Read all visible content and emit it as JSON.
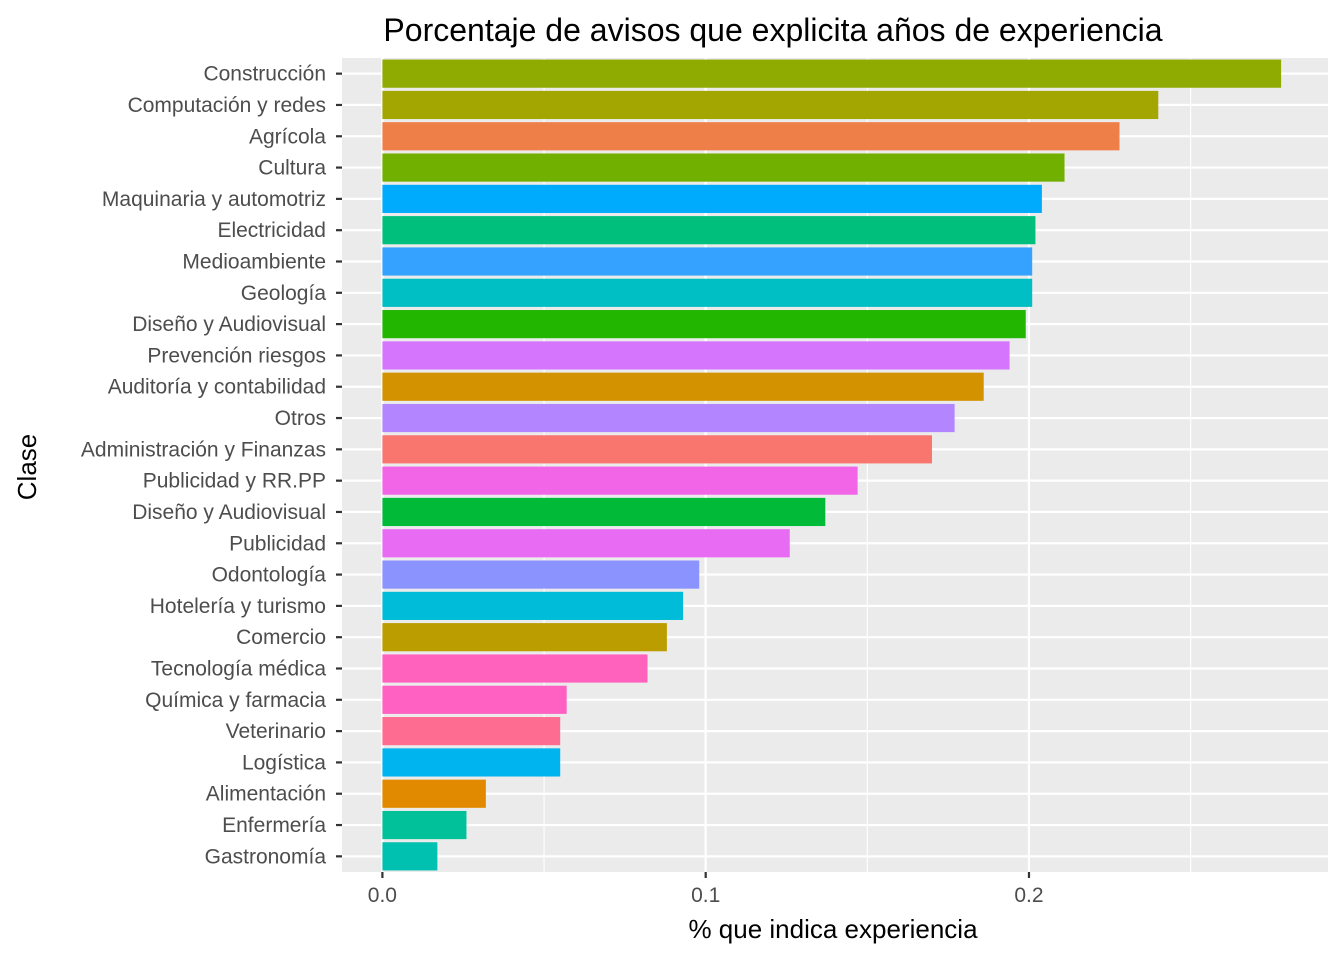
{
  "chart_data": {
    "type": "bar",
    "orientation": "horizontal",
    "title": "Porcentaje de avisos que explicita años de experiencia",
    "xlabel": "% que indica experiencia",
    "ylabel": "Clase",
    "xlim": [
      -0.0125,
      0.2925
    ],
    "x_ticks": [
      {
        "value": 0.0,
        "label": "0.0"
      },
      {
        "value": 0.1,
        "label": "0.1"
      },
      {
        "value": 0.2,
        "label": "0.2"
      }
    ],
    "x_minor": [
      0.05,
      0.15,
      0.25
    ],
    "grid": true,
    "legend": "none",
    "categories": [
      "Construcción",
      "Computación y redes",
      "Agrícola",
      "Cultura",
      "Maquinaria y automotriz",
      "Electricidad",
      "Medioambiente",
      "Geología",
      "Diseño y Audiovisual",
      "Prevención riesgos",
      "Auditoría y contabilidad",
      "Otros",
      "Administración y Finanzas",
      "Publicidad y RR.PP",
      "Diseño y Audiovisual",
      "Publicidad",
      "Odontología",
      "Hotelería y turismo",
      "Comercio",
      "Tecnología médica",
      "Química y farmacia",
      "Veterinario",
      "Logística",
      "Alimentación",
      "Enfermería",
      "Gastronomía"
    ],
    "values": [
      0.278,
      0.24,
      0.228,
      0.211,
      0.204,
      0.202,
      0.201,
      0.201,
      0.199,
      0.194,
      0.186,
      0.177,
      0.17,
      0.147,
      0.137,
      0.126,
      0.098,
      0.093,
      0.088,
      0.082,
      0.057,
      0.055,
      0.055,
      0.032,
      0.026,
      0.017
    ],
    "colors": [
      "#8FAA00",
      "#A3A500",
      "#EF7F49",
      "#72B000",
      "#00ABFD",
      "#00BF7D",
      "#35A2FF",
      "#00BFC4",
      "#22B600",
      "#D575FE",
      "#D39200",
      "#B385FF",
      "#F8766D",
      "#F265E7",
      "#00BA38",
      "#E76BF3",
      "#8B93FF",
      "#00BCD8",
      "#BB9D00",
      "#FF62BC",
      "#FF61C3",
      "#FF6C91",
      "#00B4EF",
      "#E18A00",
      "#00C19A",
      "#00C0B0"
    ],
    "panel_background": "#EBEBEB",
    "grid_color": "#FFFFFF"
  }
}
